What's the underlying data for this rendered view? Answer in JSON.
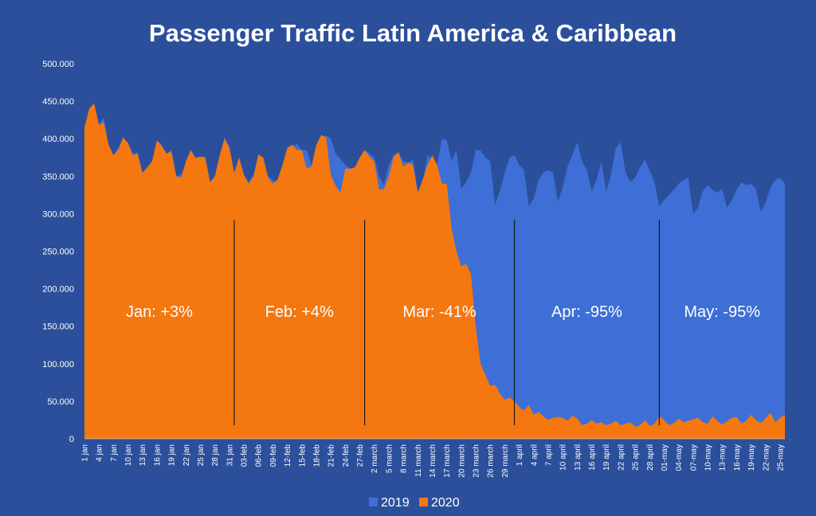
{
  "chart_data": {
    "type": "area",
    "title": "Passenger Traffic Latin America & Caribbean",
    "xlabel": "",
    "ylabel": "",
    "ylim": [
      0,
      500000
    ],
    "grid": false,
    "legend_position": "bottom",
    "y_ticks": [
      "0",
      "50.000",
      "100.000",
      "150.000",
      "200.000",
      "250.000",
      "300.000",
      "350.000",
      "400.000",
      "450.000",
      "500.000"
    ],
    "x_tick_labels": [
      "1 jan",
      "4 jan",
      "7 jan",
      "10 jan",
      "13 jan",
      "16 jan",
      "19 jan",
      "22 jan",
      "25 jan",
      "28 jan",
      "31 jan",
      "03-feb",
      "06-feb",
      "09-feb",
      "12-feb",
      "15-feb",
      "18-feb",
      "21-feb",
      "24-feb",
      "27-feb",
      "2 march",
      "5 march",
      "8 march",
      "11 march",
      "14 march",
      "17 march",
      "20 march",
      "23 march",
      "26 march",
      "29 march",
      "1 april",
      "4 april",
      "7 april",
      "10 april",
      "13 april",
      "16 april",
      "19 april",
      "22 april",
      "25 april",
      "28 april",
      "01-may",
      "04-may",
      "07-may",
      "10-may",
      "13-may",
      "16-may",
      "19-may",
      "22-may",
      "25-may"
    ],
    "series": [
      {
        "name": "2019",
        "color": "#3d6fd6",
        "values": [
          415000,
          440000,
          445000,
          420000,
          428000,
          390000,
          378000,
          388000,
          400000,
          395000,
          380000,
          382000,
          355000,
          362000,
          368000,
          398000,
          392000,
          380000,
          385000,
          350000,
          352000,
          365000,
          385000,
          375000,
          376000,
          376000,
          342000,
          350000,
          378000,
          402000,
          390000,
          355000,
          375000,
          352000,
          342000,
          352000,
          378000,
          375000,
          350000,
          345000,
          340000,
          350000,
          368000,
          390000,
          393000,
          385000,
          385000,
          365000,
          368000,
          390000,
          405000,
          400000,
          380000,
          373000,
          365000,
          360000,
          362000,
          373000,
          385000,
          380000,
          375000,
          350000,
          338000,
          365000,
          378000,
          382000,
          370000,
          368000,
          372000,
          330000,
          340000,
          378000,
          373000,
          365000,
          400000,
          398000,
          370000,
          385000,
          333000,
          342000,
          355000,
          385000,
          384000,
          375000,
          370000,
          312000,
          330000,
          355000,
          375000,
          378000,
          365000,
          358000,
          310000,
          320000,
          345000,
          355000,
          358000,
          355000,
          316000,
          335000,
          363000,
          378000,
          395000,
          370000,
          358000,
          330000,
          345000,
          370000,
          330000,
          352000,
          388000,
          395000,
          355000,
          342000,
          348000,
          362000,
          372000,
          358000,
          342000,
          310000,
          318000,
          325000,
          332000,
          340000,
          345000,
          348000,
          300000,
          308000,
          330000,
          338000,
          332000,
          328000,
          333000,
          308000,
          318000,
          332000,
          342000,
          338000,
          340000,
          333000,
          303000,
          315000,
          335000,
          345000,
          348000,
          340000
        ]
      },
      {
        "name": "2020",
        "color": "#f5770f",
        "values": [
          415000,
          440000,
          447000,
          418000,
          422000,
          392000,
          378000,
          385000,
          402000,
          394000,
          378000,
          380000,
          354000,
          362000,
          370000,
          398000,
          390000,
          380000,
          383000,
          350000,
          348000,
          370000,
          385000,
          374000,
          376000,
          375000,
          342000,
          350000,
          378000,
          400000,
          388000,
          354000,
          375000,
          352000,
          340000,
          350000,
          379000,
          375000,
          348000,
          340000,
          346000,
          365000,
          388000,
          392000,
          385000,
          385000,
          360000,
          363000,
          392000,
          405000,
          402000,
          352000,
          337000,
          328000,
          360000,
          360000,
          362000,
          375000,
          385000,
          376000,
          370000,
          332000,
          333000,
          350000,
          376000,
          382000,
          363000,
          368000,
          365000,
          328000,
          345000,
          365000,
          378000,
          365000,
          340000,
          340000,
          280000,
          250000,
          230000,
          233000,
          220000,
          150000,
          100000,
          85000,
          70000,
          72000,
          60000,
          52000,
          55000,
          50000,
          42000,
          38000,
          45000,
          32000,
          36000,
          30000,
          25000,
          28000,
          29000,
          28000,
          24000,
          31000,
          27000,
          18000,
          20000,
          25000,
          20000,
          22000,
          18000,
          20000,
          24000,
          18000,
          20000,
          22000,
          16000,
          18000,
          25000,
          17000,
          20000,
          30000,
          25000,
          18000,
          21000,
          27000,
          22000,
          24000,
          26000,
          28000,
          22000,
          20000,
          30000,
          24000,
          19000,
          23000,
          28000,
          29000,
          20000,
          24000,
          32000,
          25000,
          21000,
          27000,
          35000,
          22000,
          28000,
          32000
        ]
      }
    ],
    "annotations": [
      {
        "text": "Jan: +3%"
      },
      {
        "text": "Feb: +4%"
      },
      {
        "text": "Mar: -41%"
      },
      {
        "text": "Apr: -95%"
      },
      {
        "text": "May: -95%"
      }
    ],
    "month_divider_days": [
      31,
      58,
      89,
      119
    ]
  }
}
